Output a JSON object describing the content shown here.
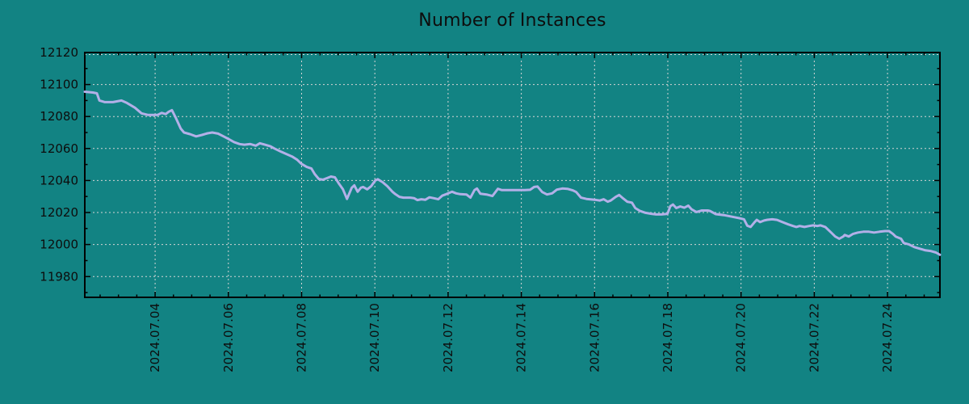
{
  "style": {
    "background_color": "#128383",
    "axis_color": "#000000",
    "grid_color": "#d4d4d4",
    "text_color": "#0d0d0d",
    "line_color": "#b3b0e8"
  },
  "chart_data": {
    "type": "line",
    "title": "Number of Instances",
    "xlabel": "",
    "ylabel": "",
    "legend": "none",
    "grid": "dotted gridlines at major ticks on both axes",
    "x_unit": "date in July 2024 (fractional day of month)",
    "xlim_days": [
      2.08,
      25.43
    ],
    "ylim": [
      11967,
      12120
    ],
    "y_major_ticks": [
      11980,
      12000,
      12020,
      12040,
      12060,
      12080,
      12100,
      12120
    ],
    "y_tick_labels": [
      "11980",
      "12000",
      "12020",
      "12040",
      "12060",
      "12080",
      "12100",
      "12120"
    ],
    "y_minor_step": 10,
    "x_minor_step": 0.5,
    "x_major_ticks": [
      {
        "day": 4,
        "label": "2024.07.04"
      },
      {
        "day": 6,
        "label": "2024.07.06"
      },
      {
        "day": 8,
        "label": "2024.07.08"
      },
      {
        "day": 10,
        "label": "2024.07.10"
      },
      {
        "day": 12,
        "label": "2024.07.12"
      },
      {
        "day": 14,
        "label": "2024.07.14"
      },
      {
        "day": 16,
        "label": "2024.07.16"
      },
      {
        "day": 18,
        "label": "2024.07.18"
      },
      {
        "day": 20,
        "label": "2024.07.20"
      },
      {
        "day": 22,
        "label": "2024.07.22"
      },
      {
        "day": 24,
        "label": "2024.07.24"
      }
    ],
    "series": [
      {
        "name": "number-of-instances",
        "color": "#b3b0e8",
        "points": [
          [
            2.08,
            12095.5
          ],
          [
            2.3,
            12095
          ],
          [
            2.41,
            12094.5
          ],
          [
            2.48,
            12090
          ],
          [
            2.63,
            12089
          ],
          [
            2.85,
            12089
          ],
          [
            3.08,
            12090
          ],
          [
            3.23,
            12088.5
          ],
          [
            3.45,
            12085.5
          ],
          [
            3.63,
            12082
          ],
          [
            3.8,
            12081
          ],
          [
            4.07,
            12081
          ],
          [
            4.18,
            12082.3
          ],
          [
            4.29,
            12081.5
          ],
          [
            4.37,
            12083
          ],
          [
            4.46,
            12084
          ],
          [
            4.57,
            12079
          ],
          [
            4.7,
            12072.5
          ],
          [
            4.79,
            12070
          ],
          [
            4.95,
            12069
          ],
          [
            5.12,
            12067.6
          ],
          [
            5.28,
            12068.5
          ],
          [
            5.43,
            12069.5
          ],
          [
            5.56,
            12070
          ],
          [
            5.72,
            12069.3
          ],
          [
            5.87,
            12067.6
          ],
          [
            6.0,
            12066
          ],
          [
            6.16,
            12064
          ],
          [
            6.31,
            12062.8
          ],
          [
            6.44,
            12062.4
          ],
          [
            6.6,
            12062.8
          ],
          [
            6.75,
            12061.8
          ],
          [
            6.86,
            12063.3
          ],
          [
            7.0,
            12062.4
          ],
          [
            7.15,
            12061.4
          ],
          [
            7.26,
            12060
          ],
          [
            7.44,
            12058
          ],
          [
            7.59,
            12056.5
          ],
          [
            7.74,
            12055
          ],
          [
            7.88,
            12053
          ],
          [
            7.99,
            12050.5
          ],
          [
            8.14,
            12048.5
          ],
          [
            8.27,
            12047.5
          ],
          [
            8.36,
            12044
          ],
          [
            8.47,
            12041
          ],
          [
            8.58,
            12040.5
          ],
          [
            8.69,
            12041.5
          ],
          [
            8.8,
            12042.5
          ],
          [
            8.91,
            12042
          ],
          [
            9.02,
            12038
          ],
          [
            9.13,
            12034.5
          ],
          [
            9.24,
            12028.5
          ],
          [
            9.37,
            12035.5
          ],
          [
            9.44,
            12037
          ],
          [
            9.53,
            12033
          ],
          [
            9.62,
            12035.5
          ],
          [
            9.68,
            12036
          ],
          [
            9.79,
            12034.5
          ],
          [
            9.9,
            12036.5
          ],
          [
            10.01,
            12040
          ],
          [
            10.08,
            12040.8
          ],
          [
            10.21,
            12039
          ],
          [
            10.34,
            12036.5
          ],
          [
            10.48,
            12033
          ],
          [
            10.56,
            12031.5
          ],
          [
            10.67,
            12029.8
          ],
          [
            10.78,
            12029.3
          ],
          [
            10.96,
            12029.3
          ],
          [
            11.07,
            12029
          ],
          [
            11.16,
            12027.8
          ],
          [
            11.27,
            12028.3
          ],
          [
            11.38,
            12028
          ],
          [
            11.49,
            12029.5
          ],
          [
            11.6,
            12029
          ],
          [
            11.73,
            12028.3
          ],
          [
            11.84,
            12030.5
          ],
          [
            11.95,
            12031.5
          ],
          [
            12.11,
            12033
          ],
          [
            12.22,
            12032
          ],
          [
            12.33,
            12031.5
          ],
          [
            12.5,
            12031.3
          ],
          [
            12.61,
            12029.3
          ],
          [
            12.72,
            12034
          ],
          [
            12.79,
            12035
          ],
          [
            12.88,
            12031.8
          ],
          [
            13.05,
            12031.3
          ],
          [
            13.21,
            12030.3
          ],
          [
            13.36,
            12034.8
          ],
          [
            13.47,
            12034
          ],
          [
            13.65,
            12034
          ],
          [
            13.87,
            12034
          ],
          [
            14.09,
            12034
          ],
          [
            14.24,
            12034.2
          ],
          [
            14.35,
            12036
          ],
          [
            14.44,
            12036.3
          ],
          [
            14.57,
            12032.8
          ],
          [
            14.7,
            12031.3
          ],
          [
            14.84,
            12032
          ],
          [
            14.97,
            12034.3
          ],
          [
            15.12,
            12035
          ],
          [
            15.26,
            12034.8
          ],
          [
            15.41,
            12033.8
          ],
          [
            15.5,
            12032.8
          ],
          [
            15.63,
            12029.3
          ],
          [
            15.78,
            12028.5
          ],
          [
            16.0,
            12028
          ],
          [
            16.14,
            12027.5
          ],
          [
            16.25,
            12028.3
          ],
          [
            16.36,
            12026.8
          ],
          [
            16.44,
            12027.5
          ],
          [
            16.58,
            12029.8
          ],
          [
            16.67,
            12031
          ],
          [
            16.78,
            12028.8
          ],
          [
            16.89,
            12026.8
          ],
          [
            17.02,
            12026.2
          ],
          [
            17.11,
            12022.8
          ],
          [
            17.24,
            12021
          ],
          [
            17.39,
            12019.8
          ],
          [
            17.55,
            12019.2
          ],
          [
            17.68,
            12018.8
          ],
          [
            17.83,
            12018.8
          ],
          [
            17.99,
            12019.2
          ],
          [
            18.07,
            12024
          ],
          [
            18.14,
            12025
          ],
          [
            18.23,
            12022.8
          ],
          [
            18.34,
            12023.8
          ],
          [
            18.45,
            12023
          ],
          [
            18.56,
            12024.3
          ],
          [
            18.65,
            12022
          ],
          [
            18.78,
            12020.3
          ],
          [
            18.93,
            12021.3
          ],
          [
            19.09,
            12021.3
          ],
          [
            19.15,
            12021
          ],
          [
            19.31,
            12019
          ],
          [
            19.53,
            12018.4
          ],
          [
            19.75,
            12017.4
          ],
          [
            19.97,
            12016.4
          ],
          [
            20.08,
            12015.8
          ],
          [
            20.17,
            12011.8
          ],
          [
            20.26,
            12011
          ],
          [
            20.37,
            12014
          ],
          [
            20.43,
            12015.4
          ],
          [
            20.52,
            12014
          ],
          [
            20.63,
            12015
          ],
          [
            20.72,
            12015.5
          ],
          [
            20.85,
            12015.8
          ],
          [
            20.98,
            12015.4
          ],
          [
            21.13,
            12014
          ],
          [
            21.29,
            12012.6
          ],
          [
            21.42,
            12011.6
          ],
          [
            21.51,
            12011
          ],
          [
            21.6,
            12011.6
          ],
          [
            21.73,
            12011
          ],
          [
            21.86,
            12011.6
          ],
          [
            21.97,
            12012
          ],
          [
            22.08,
            12011.6
          ],
          [
            22.17,
            12012
          ],
          [
            22.3,
            12011
          ],
          [
            22.46,
            12007.5
          ],
          [
            22.57,
            12005
          ],
          [
            22.68,
            12003.6
          ],
          [
            22.79,
            12005
          ],
          [
            22.83,
            12006
          ],
          [
            22.94,
            12005
          ],
          [
            23.05,
            12006.6
          ],
          [
            23.19,
            12007.5
          ],
          [
            23.34,
            12008
          ],
          [
            23.49,
            12008
          ],
          [
            23.63,
            12007.5
          ],
          [
            23.78,
            12008
          ],
          [
            23.93,
            12008.4
          ],
          [
            24.04,
            12008.4
          ],
          [
            24.15,
            12006.6
          ],
          [
            24.22,
            12005
          ],
          [
            24.37,
            12003.6
          ],
          [
            24.44,
            12001
          ],
          [
            24.59,
            12000
          ],
          [
            24.73,
            11998.4
          ],
          [
            24.88,
            11997.4
          ],
          [
            25.03,
            11996.4
          ],
          [
            25.17,
            11996
          ],
          [
            25.32,
            11995
          ],
          [
            25.43,
            11993.6
          ]
        ]
      }
    ]
  }
}
